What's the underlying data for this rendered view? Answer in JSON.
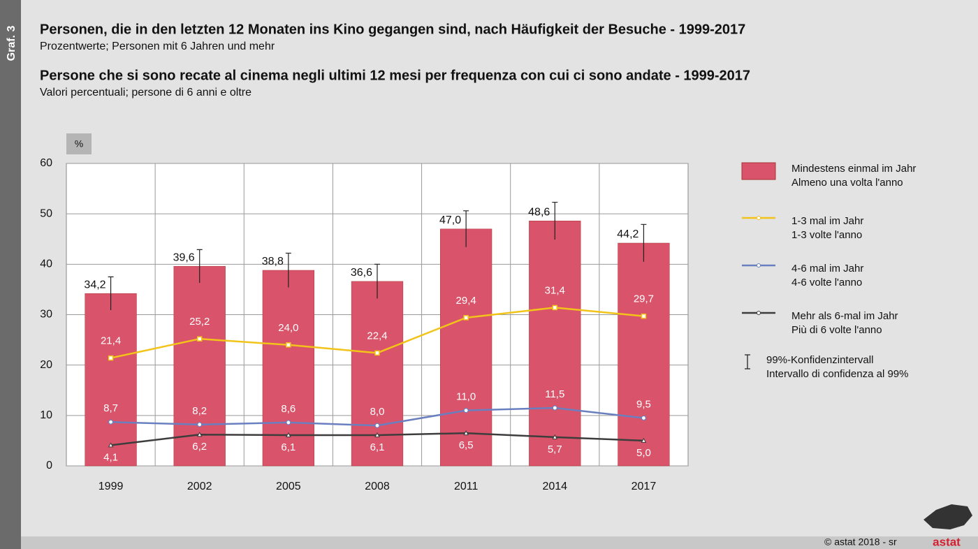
{
  "side_label": "Graf. 3",
  "titles": [
    {
      "title": "Personen, die in den letzten 12 Monaten ins Kino gegangen sind, nach Häufigkeit der Besuche - 1999-2017",
      "subtitle": "Prozentwerte; Personen mit 6 Jahren und mehr"
    },
    {
      "title": "Persone che si sono recate al cinema negli ultimi 12 mesi per frequenza con cui ci sono andate - 1999-2017",
      "subtitle": "Valori percentuali; persone di 6 anni e oltre"
    }
  ],
  "footer": "© astat 2018 - sr",
  "logo": "astat",
  "chart_data": {
    "type": "bar",
    "ylabel": "%",
    "categories": [
      "1999",
      "2002",
      "2005",
      "2008",
      "2011",
      "2014",
      "2017"
    ],
    "ylim": [
      0,
      60
    ],
    "yticks": [
      0,
      10,
      20,
      30,
      40,
      50,
      60
    ],
    "grid": true,
    "series": [
      {
        "type": "bar",
        "name": [
          "Mindestens einmal im Jahr",
          "Almeno una volta l'anno"
        ],
        "color": "#d9536a",
        "values": [
          34.2,
          39.6,
          38.8,
          36.6,
          47.0,
          48.6,
          44.2
        ],
        "value_labels": [
          "34,2",
          "39,6",
          "38,8",
          "36,6",
          "47,0",
          "48,6",
          "44,2"
        ],
        "errors": [
          3.3,
          3.3,
          3.4,
          3.4,
          3.6,
          3.7,
          3.7
        ]
      },
      {
        "type": "line",
        "marker": "square",
        "name": [
          "1-3 mal im Jahr",
          "1-3 volte l'anno"
        ],
        "color": "#f2c318",
        "values": [
          21.4,
          25.2,
          24.0,
          22.4,
          29.4,
          31.4,
          29.7
        ],
        "value_labels": [
          "21,4",
          "25,2",
          "24,0",
          "22,4",
          "29,4",
          "31,4",
          "29,7"
        ]
      },
      {
        "type": "line",
        "marker": "circle",
        "name": [
          "4-6 mal im Jahr",
          "4-6 volte l'anno"
        ],
        "color": "#6a7fc0",
        "values": [
          8.7,
          8.2,
          8.6,
          8.0,
          11.0,
          11.5,
          9.5
        ],
        "value_labels": [
          "8,7",
          "8,2",
          "8,6",
          "8,0",
          "11,0",
          "11,5",
          "9,5"
        ]
      },
      {
        "type": "line",
        "marker": "triangle",
        "name": [
          "Mehr als 6-mal im Jahr",
          "Più di 6 volte l'anno"
        ],
        "color": "#3d3d3d",
        "values": [
          4.1,
          6.2,
          6.1,
          6.1,
          6.5,
          5.7,
          5.0
        ],
        "value_labels": [
          "4,1",
          "6,2",
          "6,1",
          "6,1",
          "6,5",
          "5,7",
          "5,0"
        ]
      }
    ],
    "ci_legend": [
      "99%-Konfidenzintervall",
      "Intervallo di confidenza al 99%"
    ]
  }
}
